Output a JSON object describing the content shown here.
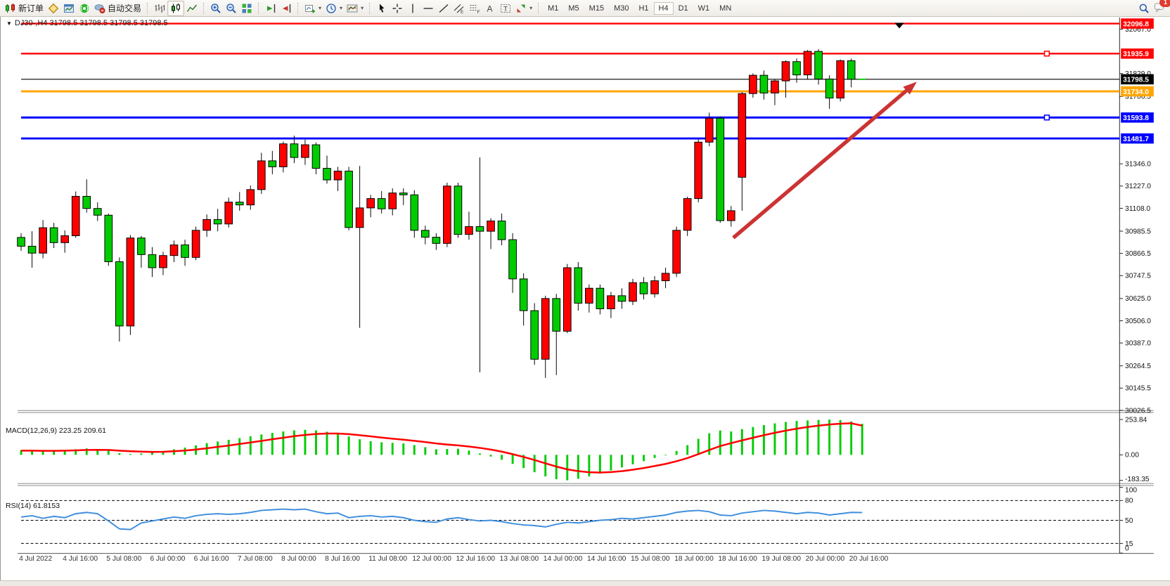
{
  "toolbar": {
    "new_order_label": "新订单",
    "auto_trading_label": "自动交易",
    "timeframes": [
      "M1",
      "M5",
      "M15",
      "M30",
      "H1",
      "H4",
      "D1",
      "W1",
      "MN"
    ],
    "active_timeframe": "H4",
    "notification_count": "1"
  },
  "chart": {
    "title": "DJ30-,H4  31798.5 31798.5 31798.5 31798.5",
    "symbol": "DJ30-",
    "period": "H4"
  },
  "chart_data": {
    "type": "candlestick",
    "symbol": "DJ30-",
    "timeframe": "H4",
    "note": "red = bullish, green = bearish (CN color convention)",
    "colors": {
      "up": "#ff0000",
      "down": "#00cc00",
      "wick": "#000000",
      "doji": "#00cc00",
      "macd_hist": "#00cc00",
      "macd_signal": "#ff0000",
      "rsi_line": "#3e8ede",
      "arrow": "#cc3333"
    },
    "price_axis_ticks": [
      "32067.0",
      "31829.0",
      "31706.5",
      "31346.0",
      "31227.0",
      "31108.0",
      "30985.5",
      "30866.5",
      "30747.5",
      "30625.0",
      "30506.0",
      "30387.0",
      "30264.5",
      "30145.5",
      "30026.5"
    ],
    "levels": [
      {
        "label": "32096.8",
        "price": 32096.8,
        "color": "#ff0000",
        "width": 2.5,
        "marker": false
      },
      {
        "label": "31935.9",
        "price": 31935.9,
        "color": "#ff0000",
        "width": 2.5,
        "marker": true
      },
      {
        "label": "31798.5",
        "price": 31798.5,
        "color": "#000000",
        "width": 1.2,
        "marker": false,
        "role": "current-price"
      },
      {
        "label": "31734.0",
        "price": 31734.0,
        "color": "#ffa500",
        "width": 3,
        "marker": false
      },
      {
        "label": "31593.8",
        "price": 31593.8,
        "color": "#0000ff",
        "width": 3,
        "marker": true
      },
      {
        "label": "31481.7",
        "price": 31481.7,
        "color": "#0000ff",
        "width": 3,
        "marker": false
      }
    ],
    "time_labels": [
      "4 Jul 2022",
      "4 Jul 16:00",
      "5 Jul 08:00",
      "6 Jul 00:00",
      "6 Jul 16:00",
      "7 Jul 08:00",
      "8 Jul 00:00",
      "8 Jul 16:00",
      "11 Jul 08:00",
      "12 Jul 00:00",
      "12 Jul 16:00",
      "13 Jul 08:00",
      "14 Jul 00:00",
      "14 Jul 16:00",
      "15 Jul 08:00",
      "18 Jul 00:00",
      "18 Jul 16:00",
      "19 Jul 08:00",
      "20 Jul 00:00",
      "20 Jul 16:00"
    ],
    "candles": [
      [
        30952,
        30975,
        30880,
        30905
      ],
      [
        30905,
        30985,
        30790,
        30868
      ],
      [
        30868,
        31045,
        30840,
        31004
      ],
      [
        31004,
        31030,
        30895,
        30924
      ],
      [
        30924,
        30990,
        30870,
        30961
      ],
      [
        30961,
        31198,
        30950,
        31172
      ],
      [
        31172,
        31263,
        31085,
        31107
      ],
      [
        31107,
        31140,
        31040,
        31071
      ],
      [
        31071,
        31080,
        30800,
        30822
      ],
      [
        30822,
        30845,
        30395,
        30478
      ],
      [
        30478,
        30965,
        30430,
        30949
      ],
      [
        30949,
        30960,
        30790,
        30860
      ],
      [
        30860,
        30900,
        30740,
        30790
      ],
      [
        30790,
        30875,
        30750,
        30855
      ],
      [
        30855,
        30935,
        30820,
        30912
      ],
      [
        30912,
        30940,
        30800,
        30845
      ],
      [
        30845,
        31010,
        30830,
        30990
      ],
      [
        30990,
        31075,
        30955,
        31048
      ],
      [
        31048,
        31105,
        30985,
        31024
      ],
      [
        31024,
        31165,
        31005,
        31141
      ],
      [
        31141,
        31195,
        31095,
        31126
      ],
      [
        31126,
        31230,
        31100,
        31208
      ],
      [
        31208,
        31405,
        31185,
        31362
      ],
      [
        31362,
        31415,
        31290,
        31330
      ],
      [
        31330,
        31465,
        31300,
        31453
      ],
      [
        31453,
        31497,
        31350,
        31380
      ],
      [
        31380,
        31475,
        31340,
        31448
      ],
      [
        31448,
        31460,
        31290,
        31322
      ],
      [
        31322,
        31390,
        31240,
        31260
      ],
      [
        31260,
        31330,
        31200,
        31307
      ],
      [
        31307,
        31330,
        30990,
        31005
      ],
      [
        31005,
        31335,
        30468,
        31110
      ],
      [
        31110,
        31180,
        31060,
        31160
      ],
      [
        31160,
        31200,
        31080,
        31105
      ],
      [
        31105,
        31215,
        31070,
        31190
      ],
      [
        31190,
        31215,
        31125,
        31180
      ],
      [
        31180,
        31205,
        30950,
        30990
      ],
      [
        30990,
        31015,
        30915,
        30953
      ],
      [
        30953,
        30975,
        30885,
        30920
      ],
      [
        30920,
        31245,
        30900,
        31227
      ],
      [
        31227,
        31245,
        30950,
        30968
      ],
      [
        30968,
        31090,
        30940,
        31010
      ],
      [
        31010,
        31380,
        30230,
        30985
      ],
      [
        30985,
        31055,
        30890,
        31040
      ],
      [
        31040,
        31080,
        30910,
        30940
      ],
      [
        30940,
        30975,
        30655,
        30730
      ],
      [
        30730,
        30760,
        30480,
        30560
      ],
      [
        30560,
        30600,
        30270,
        30300
      ],
      [
        30300,
        30640,
        30200,
        30625
      ],
      [
        30625,
        30650,
        30215,
        30450
      ],
      [
        30450,
        30810,
        30440,
        30790
      ],
      [
        30790,
        30820,
        30560,
        30600
      ],
      [
        30600,
        30700,
        30550,
        30680
      ],
      [
        30680,
        30700,
        30540,
        30570
      ],
      [
        30570,
        30660,
        30520,
        30640
      ],
      [
        30640,
        30680,
        30570,
        30610
      ],
      [
        30610,
        30730,
        30590,
        30710
      ],
      [
        30710,
        30740,
        30620,
        30650
      ],
      [
        30650,
        30745,
        30630,
        30720
      ],
      [
        30720,
        30790,
        30680,
        30760
      ],
      [
        30760,
        31010,
        30740,
        30990
      ],
      [
        30990,
        31170,
        30960,
        31160
      ],
      [
        31160,
        31480,
        31140,
        31462
      ],
      [
        31462,
        31620,
        31440,
        31590
      ],
      [
        31590,
        31600,
        31030,
        31042
      ],
      [
        31042,
        31120,
        31010,
        31095
      ],
      [
        31274,
        31730,
        31095,
        31722
      ],
      [
        31722,
        31830,
        31700,
        31820
      ],
      [
        31820,
        31845,
        31690,
        31725
      ],
      [
        31725,
        31800,
        31660,
        31790
      ],
      [
        31790,
        31900,
        31700,
        31893
      ],
      [
        31893,
        31910,
        31780,
        31822
      ],
      [
        31822,
        31955,
        31800,
        31948
      ],
      [
        31948,
        31960,
        31770,
        31800
      ],
      [
        31800,
        31820,
        31640,
        31698
      ],
      [
        31698,
        31905,
        31680,
        31898
      ],
      [
        31898,
        31910,
        31755,
        31798.5
      ],
      [
        31798.5,
        31798.5,
        31798.5,
        31798.5
      ]
    ],
    "trend_arrow": {
      "from": {
        "bar": 65.2,
        "price": 30950
      },
      "to": {
        "bar": 82,
        "price": 31785
      },
      "color": "#cc3333",
      "width": 5.5
    },
    "top_marker": {
      "bar": 80.4,
      "price": 32096.8,
      "shape": "triangle-down",
      "color": "#000000"
    },
    "macd": {
      "label": "MACD(12,26,9) 223.25 209.61",
      "value": 223.25,
      "signal_value": 209.61,
      "scale_labels": [
        "253.84",
        "0.00",
        "-183.35"
      ],
      "scale_values": [
        253.84,
        0,
        -183.35
      ],
      "hist": [
        34,
        30,
        27,
        29,
        33,
        40,
        46,
        42,
        30,
        12,
        6,
        10,
        16,
        26,
        40,
        52,
        68,
        84,
        96,
        108,
        120,
        133,
        146,
        158,
        168,
        176,
        180,
        176,
        166,
        152,
        132,
        112,
        98,
        90,
        86,
        82,
        70,
        55,
        40,
        42,
        44,
        30,
        10,
        -12,
        -35,
        -65,
        -95,
        -125,
        -155,
        -175,
        -183,
        -172,
        -155,
        -135,
        -112,
        -90,
        -68,
        -45,
        -22,
        -4,
        28,
        70,
        115,
        155,
        175,
        168,
        185,
        200,
        214,
        226,
        236,
        243,
        247,
        251,
        253.84,
        250,
        240,
        223.25
      ],
      "signal": [
        30,
        30,
        29,
        29,
        30,
        32,
        35,
        36,
        35,
        30,
        26,
        23,
        21,
        22,
        26,
        31,
        38,
        47,
        57,
        67,
        78,
        89,
        100,
        112,
        123,
        134,
        143,
        150,
        153,
        153,
        149,
        141,
        133,
        124,
        116,
        109,
        101,
        92,
        82,
        74,
        68,
        60,
        50,
        38,
        23,
        5,
        -15,
        -37,
        -61,
        -84,
        -104,
        -117,
        -125,
        -127,
        -124,
        -117,
        -107,
        -95,
        -80,
        -65,
        -46,
        -23,
        5,
        35,
        63,
        84,
        104,
        123,
        141,
        158,
        174,
        188,
        200,
        210,
        218,
        224,
        227,
        209.61
      ]
    },
    "rsi": {
      "label": "RSI(14) 61.8153",
      "value": 61.8153,
      "scale_labels": [
        "100",
        "80",
        "50",
        "15",
        "0"
      ],
      "scale_values": [
        100,
        80,
        50,
        15,
        0
      ],
      "dashed_levels": [
        80,
        50,
        15
      ],
      "values": [
        55,
        57,
        53,
        56,
        54,
        60,
        62,
        60,
        49,
        37,
        36,
        46,
        49,
        52,
        55,
        53,
        57,
        59,
        60,
        59,
        60,
        62,
        65,
        66,
        67,
        66,
        67,
        63,
        60,
        61,
        54,
        56,
        57,
        55,
        56,
        54,
        50,
        48,
        47,
        52,
        54,
        51,
        49,
        50,
        48,
        45,
        43,
        42,
        40,
        44,
        47,
        46,
        48,
        50,
        51,
        53,
        52,
        54,
        56,
        58,
        62,
        64,
        65,
        63,
        58,
        57,
        61,
        63,
        65,
        64,
        62,
        60,
        62,
        61,
        58,
        60,
        62,
        61.8153
      ]
    }
  }
}
